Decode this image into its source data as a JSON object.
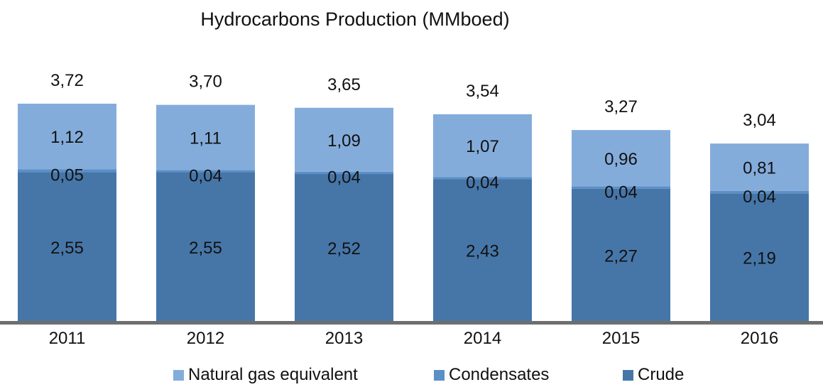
{
  "chart_data": {
    "type": "bar",
    "stacked": true,
    "title": "Hydrocarbons Production (MMboed)",
    "categories": [
      "2011",
      "2012",
      "2013",
      "2014",
      "2015",
      "2016"
    ],
    "series": [
      {
        "name": "Crude",
        "values": [
          "2,55",
          "2,55",
          "2,52",
          "2,43",
          "2,27",
          "2,19"
        ],
        "color": "#4676A8"
      },
      {
        "name": "Condensates",
        "values": [
          "0,05",
          "0,04",
          "0,04",
          "0,04",
          "0,04",
          "0,04"
        ],
        "color": "#5B8FC8"
      },
      {
        "name": "Natural gas equivalent",
        "values": [
          "1,12",
          "1,11",
          "1,09",
          "1,07",
          "0,96",
          "0,81"
        ],
        "color": "#84ACDB"
      }
    ],
    "totals": [
      "3,72",
      "3,70",
      "3,65",
      "3,54",
      "3,27",
      "3,04"
    ],
    "ylim": [
      0,
      3.72
    ],
    "grid": false,
    "legend": [
      "Natural gas equivalent",
      "Condensates",
      "Crude"
    ],
    "legend_position": "bottom"
  }
}
